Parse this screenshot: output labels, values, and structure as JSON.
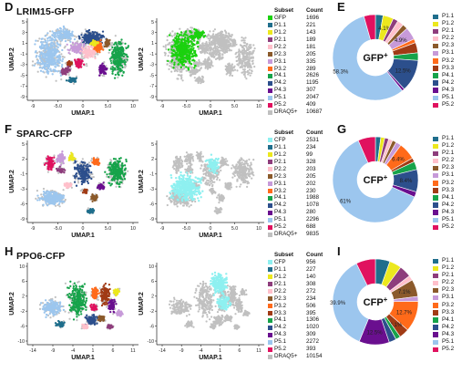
{
  "colors": {
    "GFP": "#1bd10f",
    "CFP": "#8ef0f0",
    "P1.1": "#1f6e8c",
    "P1.2": "#ece81e",
    "P2.1": "#8e3d7c",
    "P2.2": "#ffc0cb",
    "P2.3": "#8b5a2b",
    "P3.1": "#c79ad9",
    "P3.2": "#ff6a1a",
    "P3.3": "#a13b15",
    "P4.1": "#16a34a",
    "P4.2": "#2c4f8c",
    "P4.3": "#6a0f8f",
    "P5.1": "#9cc6ee",
    "P5.2": "#e0115f",
    "DRAQ5+": "#c0c0c0"
  },
  "rows": [
    {
      "letter_left": "D",
      "title": "LRIM15-GFP",
      "letter_right": "E",
      "reporter": "GFP",
      "umap_xlabel": "UMAP.1",
      "umap_ylabel": "UMAP.2",
      "x_ticks": [
        "-9",
        "-5.0",
        "0",
        "5.0",
        "10"
      ],
      "y_ticks": [
        "5",
        "3",
        "1",
        "-1",
        "-3",
        "-5",
        "-7",
        "-9"
      ],
      "table_headers": [
        "Subset",
        "Count"
      ],
      "table": [
        [
          "GFP",
          "1696"
        ],
        [
          "P1.1",
          "221"
        ],
        [
          "P1.2",
          "143"
        ],
        [
          "P2.1",
          "189"
        ],
        [
          "P2.2",
          "181"
        ],
        [
          "P2.3",
          "205"
        ],
        [
          "P3.1",
          "335"
        ],
        [
          "P3.2",
          "289"
        ],
        [
          "P4.1",
          "2626"
        ],
        [
          "P4.2",
          "1195"
        ],
        [
          "P4.3",
          "307"
        ],
        [
          "P5.1",
          "2047"
        ],
        [
          "P5.2",
          "409"
        ],
        [
          "DRAQ5+",
          "10687"
        ]
      ],
      "donut_center": "GFP+",
      "donut_labels": [
        "58.3%",
        "4.1%",
        "4.9%",
        "12.5%"
      ],
      "legend_items": [
        "P1.1",
        "P1.2",
        "P2.1",
        "P2.2",
        "P2.3",
        "P3.1",
        "P3.2",
        "P3.3",
        "P4.1",
        "P4.2",
        "P4.3",
        "P5.1",
        "P5.2"
      ]
    },
    {
      "letter_left": "F",
      "title": "SPARC-CFP",
      "letter_right": "G",
      "reporter": "CFP",
      "umap_xlabel": "UMAP.1",
      "umap_ylabel": "UMAP.2",
      "x_ticks": [
        "-9",
        "-5.0",
        "0",
        "5.0",
        "10"
      ],
      "y_ticks": [
        "5",
        "2",
        "-1",
        "-3",
        "-6",
        "-9"
      ],
      "table_headers": [
        "Subset",
        "Count"
      ],
      "table": [
        [
          "CFP",
          "2531"
        ],
        [
          "P1.1",
          "234"
        ],
        [
          "P1.2",
          "99"
        ],
        [
          "P2.1",
          "328"
        ],
        [
          "P2.2",
          "203"
        ],
        [
          "P2.3",
          "205"
        ],
        [
          "P3.1",
          "202"
        ],
        [
          "P3.2",
          "230"
        ],
        [
          "P4.1",
          "1988"
        ],
        [
          "P4.2",
          "1078"
        ],
        [
          "P4.3",
          "280"
        ],
        [
          "P5.1",
          "2296"
        ],
        [
          "P5.2",
          "688"
        ],
        [
          "DRAQ5+",
          "9835"
        ]
      ],
      "donut_center": "CFP+",
      "donut_labels": [
        "61%",
        "6.4%",
        "8.4%"
      ],
      "legend_items": [
        "P1.1",
        "P1.2",
        "P2.1",
        "P2.2",
        "P2.3",
        "P3.1",
        "P3.2",
        "P3.3",
        "P4.1",
        "P4.2",
        "P4.3",
        "P5.1",
        "P5.2"
      ]
    },
    {
      "letter_left": "H",
      "title": "PPO6-CFP",
      "letter_right": "I",
      "reporter": "CFP",
      "umap_xlabel": "UMAP.1",
      "umap_ylabel": "UMAP.2",
      "x_ticks": [
        "-14",
        "-9",
        "-4",
        "1",
        "6",
        "11"
      ],
      "y_ticks": [
        "10",
        "6",
        "2",
        "-2",
        "-6",
        "-10"
      ],
      "table_headers": [
        "Subset",
        "Count"
      ],
      "table": [
        [
          "CFP",
          "956"
        ],
        [
          "P1.1",
          "227"
        ],
        [
          "P1.2",
          "140"
        ],
        [
          "P2.1",
          "308"
        ],
        [
          "P2.2",
          "272"
        ],
        [
          "P2.3",
          "234"
        ],
        [
          "P3.2",
          "506"
        ],
        [
          "P3.3",
          "395"
        ],
        [
          "P4.1",
          "1306"
        ],
        [
          "P4.2",
          "1020"
        ],
        [
          "P4.3",
          "309"
        ],
        [
          "P5.1",
          "2272"
        ],
        [
          "P5.2",
          "393"
        ],
        [
          "DRAQ5+",
          "10154"
        ]
      ],
      "donut_center": "CFP+",
      "donut_labels": [
        "39.9%",
        "12.7%",
        "4.1%",
        "12.5%",
        "7.1%"
      ],
      "legend_items": [
        "P1.1",
        "P1.2",
        "P2.1",
        "P2.2",
        "P2.3",
        "P3.1",
        "P3.2",
        "P3.3",
        "P4.1",
        "P4.2",
        "P4.3",
        "P5.1",
        "P5.2"
      ]
    }
  ],
  "chart_data": [
    {
      "type": "pie",
      "panel": "E",
      "center_label": "GFP+",
      "categories": [
        "P1.1",
        "P1.2",
        "P2.1",
        "P2.2",
        "P2.3",
        "P3.1",
        "P3.2",
        "P3.3",
        "P4.1",
        "P4.2",
        "P4.3",
        "P5.1",
        "P5.2"
      ],
      "values": [
        3,
        4.1,
        2,
        2.5,
        2,
        4.9,
        1.5,
        4,
        3,
        12.5,
        1,
        58.3,
        4.5
      ]
    },
    {
      "type": "pie",
      "panel": "G",
      "center_label": "CFP+",
      "categories": [
        "P1.1",
        "P1.2",
        "P2.1",
        "P2.2",
        "P2.3",
        "P3.1",
        "P3.2",
        "P3.3",
        "P4.1",
        "P4.2",
        "P4.3",
        "P5.1",
        "P5.2"
      ],
      "values": [
        2,
        1.5,
        1.5,
        1.5,
        1.5,
        2,
        6.4,
        1.5,
        3,
        8.4,
        2,
        61,
        6.5
      ]
    },
    {
      "type": "pie",
      "panel": "I",
      "center_label": "CFP+",
      "categories": [
        "P1.1",
        "P1.2",
        "P2.1",
        "P2.2",
        "P2.3",
        "P3.1",
        "P3.2",
        "P3.3",
        "P4.1",
        "P4.2",
        "P4.3",
        "P5.1",
        "P5.2"
      ],
      "values": [
        6,
        5,
        5,
        2,
        7.1,
        2,
        12.7,
        4.1,
        2,
        3,
        12.5,
        39.9,
        8
      ]
    }
  ]
}
